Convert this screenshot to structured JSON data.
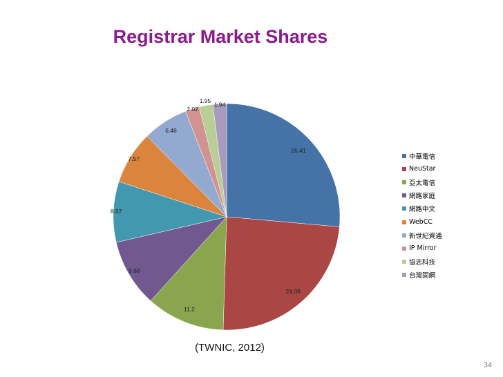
{
  "colors": {
    "title": "#8b1a8f"
  },
  "chart_data": {
    "type": "pie",
    "title": "Registrar Market Shares",
    "categories": [
      "中華電信",
      "NeuStar",
      "亞太電信",
      "網路家庭",
      "網路中文",
      "WebCC",
      "新世紀資通",
      "IP Mirror",
      "協志科技",
      "台灣固網"
    ],
    "values": [
      26.41,
      24.08,
      11.2,
      9.68,
      8.67,
      7.57,
      6.48,
      2.02,
      1.95,
      1.94
    ],
    "value_labels": [
      "26.41",
      "24.08",
      "11.2",
      "9.68",
      "8.67",
      "7.57",
      "6.48",
      "2.02",
      "1.95",
      "1.94"
    ],
    "colors": [
      "#4573a7",
      "#aa4643",
      "#89a54e",
      "#71588f",
      "#4198af",
      "#db843d",
      "#93a9cf",
      "#d19392",
      "#b9cd96",
      "#a99bbd"
    ],
    "legend_position": "right",
    "start_angle": "12 o'clock, clockwise"
  },
  "source_note": "(TWNIC, 2012)",
  "page_number": "34"
}
